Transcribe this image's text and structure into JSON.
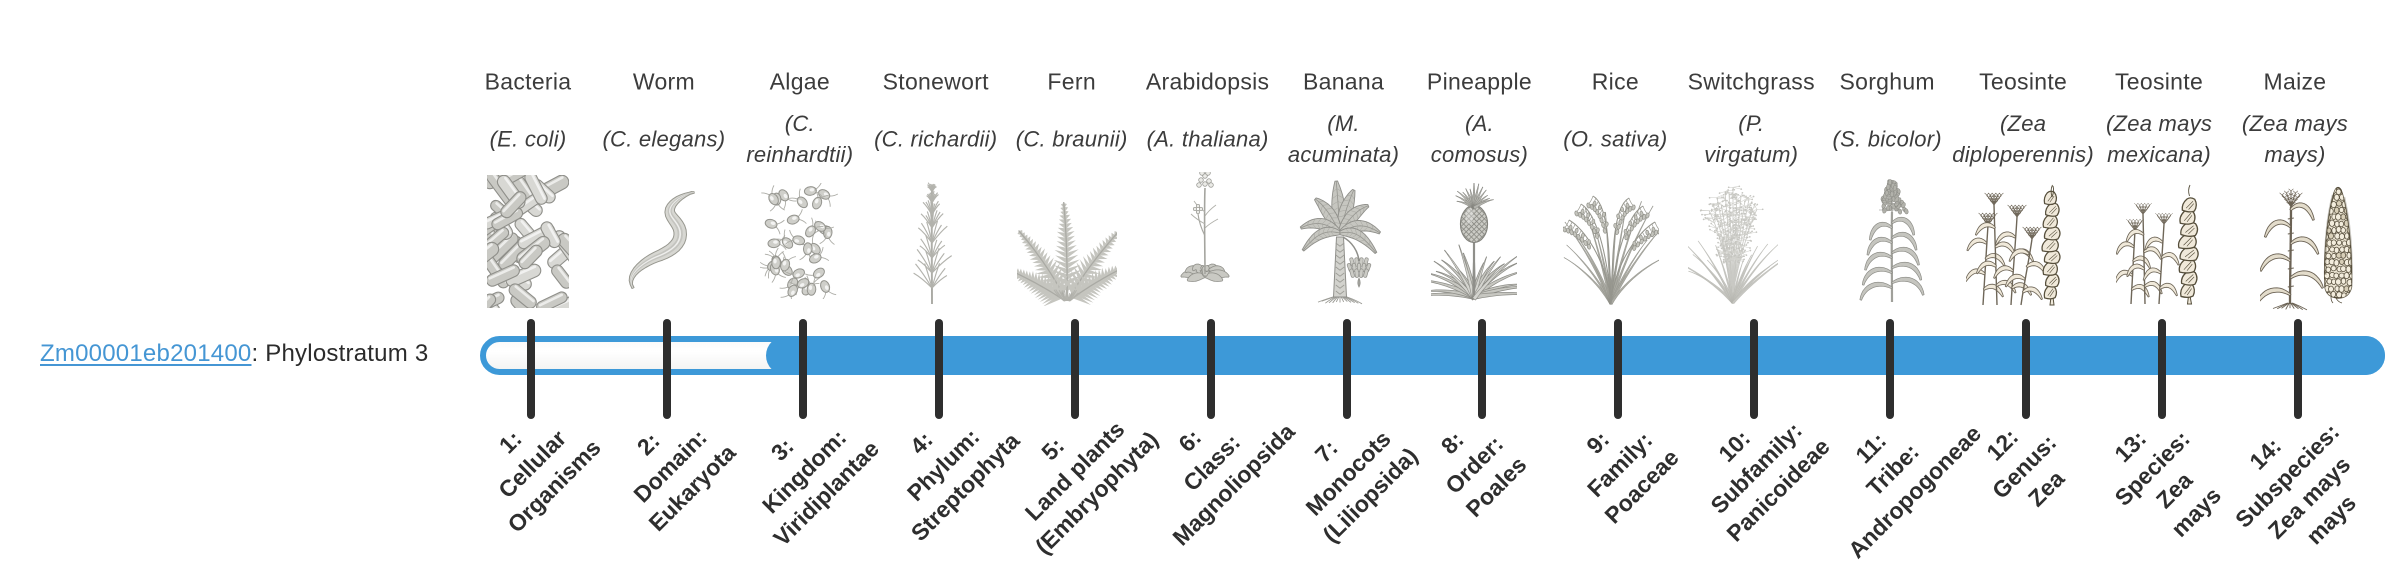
{
  "gene": {
    "id": "Zm00001eb201400",
    "suffix": ": Phylostratum 3",
    "phylostratum": 3
  },
  "theme": {
    "bar_blue": "#3d99d8",
    "link_blue": "#4596d4",
    "tick_color": "#2e2e2e"
  },
  "chart_data": {
    "type": "phylostratum-bar",
    "title": "Zm00001eb201400: Phylostratum 3",
    "gene_id": "Zm00001eb201400",
    "phylostratum": 3,
    "num_levels": 14,
    "filled_levels": [
      3,
      4,
      5,
      6,
      7,
      8,
      9,
      10,
      11,
      12,
      13,
      14
    ],
    "categories": [
      "1: Cellular Organisms",
      "2: Domain: Eukaryota",
      "3: Kingdom: Viridiplantae",
      "4: Phylum: Streptophyta",
      "5: Land plants (Embryophyta)",
      "6: Class: Magnoliopsida",
      "7: Monocots (Liliopsida)",
      "8: Order: Poales",
      "9: Family: Poaceae",
      "10: Subfamily: Panicoideae",
      "11: Tribe: Andropogoneae",
      "12: Genus: Zea",
      "13: Species: Zea mays",
      "14: Subspecies: Zea mays mays"
    ],
    "organisms": [
      "Bacteria (E. coli)",
      "Worm (C. elegans)",
      "Algae (C. reinhardtii)",
      "Stonewort (C. richardii)",
      "Fern (C. braunii)",
      "Arabidopsis (A. thaliana)",
      "Banana (M. acuminata)",
      "Pineapple (A. comosus)",
      "Rice (O. sativa)",
      "Switchgrass (P. virgatum)",
      "Sorghum (S. bicolor)",
      "Teosinte (Zea diploperennis)",
      "Teosinte (Zea mays mexicana)",
      "Maize (Zea mays mays)"
    ]
  },
  "organisms": [
    {
      "index": 1,
      "name": "Bacteria",
      "species": "(E. coli)",
      "icon": "bacteria",
      "taxon_label": "1:\nCellular\nOrganisms"
    },
    {
      "index": 2,
      "name": "Worm",
      "species": "(C. elegans)",
      "icon": "worm",
      "taxon_label": "2:\nDomain:\nEukaryota"
    },
    {
      "index": 3,
      "name": "Algae",
      "species": "(C.\nreinhardtii)",
      "icon": "algae",
      "taxon_label": "3:\nKingdom:\nViridiplantae"
    },
    {
      "index": 4,
      "name": "Stonewort",
      "species": "(C. richardii)",
      "icon": "stonewort",
      "taxon_label": "4:\nPhylum:\nStreptophyta"
    },
    {
      "index": 5,
      "name": "Fern",
      "species": "(C. braunii)",
      "icon": "fern",
      "taxon_label": "5:\nLand plants\n(Embryophyta)"
    },
    {
      "index": 6,
      "name": "Arabidopsis",
      "species": "(A. thaliana)",
      "icon": "arabidopsis",
      "taxon_label": "6:\nClass:\nMagnoliopsida"
    },
    {
      "index": 7,
      "name": "Banana",
      "species": "(M.\nacuminata)",
      "icon": "banana",
      "taxon_label": "7:\nMonocots\n(Liliopsida)"
    },
    {
      "index": 8,
      "name": "Pineapple",
      "species": "(A.\ncomosus)",
      "icon": "pineapple",
      "taxon_label": "8:\nOrder:\nPoales"
    },
    {
      "index": 9,
      "name": "Rice",
      "species": "(O. sativa)",
      "icon": "rice",
      "taxon_label": "9:\nFamily:\nPoaceae"
    },
    {
      "index": 10,
      "name": "Switchgrass",
      "species": "(P.\nvirgatum)",
      "icon": "switchgrass",
      "taxon_label": "10:\nSubfamily:\nPanicoideae"
    },
    {
      "index": 11,
      "name": "Sorghum",
      "species": "(S. bicolor)",
      "icon": "sorghum",
      "taxon_label": "11:\nTribe:\nAndropogoneae"
    },
    {
      "index": 12,
      "name": "Teosinte",
      "species": "(Zea\ndiploperennis)",
      "icon": "teosinte-diploperennis",
      "taxon_label": "12:\nGenus:\nZea"
    },
    {
      "index": 13,
      "name": "Teosinte",
      "species": "(Zea mays\nmexicana)",
      "icon": "teosinte-mexicana",
      "taxon_label": "13:\nSpecies:\nZea\nmays"
    },
    {
      "index": 14,
      "name": "Maize",
      "species": "(Zea mays\nmays)",
      "icon": "maize",
      "taxon_label": "14:\nSubspecies:\nZea mays\nmays"
    }
  ]
}
